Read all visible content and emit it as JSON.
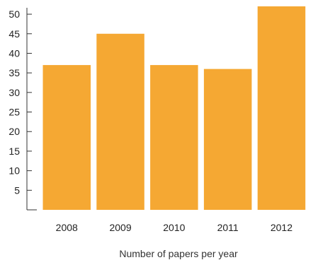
{
  "chart_data": {
    "type": "bar",
    "categories": [
      "2008",
      "2009",
      "2010",
      "2011",
      "2012"
    ],
    "values": [
      37,
      45,
      37,
      36,
      52
    ],
    "title": "",
    "xlabel": "Number of papers per year",
    "ylabel": "",
    "ylim": [
      0,
      52
    ],
    "yticks": [
      "5",
      "10",
      "15",
      "20",
      "25",
      "30",
      "35",
      "40",
      "45",
      "50"
    ],
    "grid": false,
    "legend": "none",
    "bar_color": "#F5A833",
    "axis_color": "#333333"
  }
}
